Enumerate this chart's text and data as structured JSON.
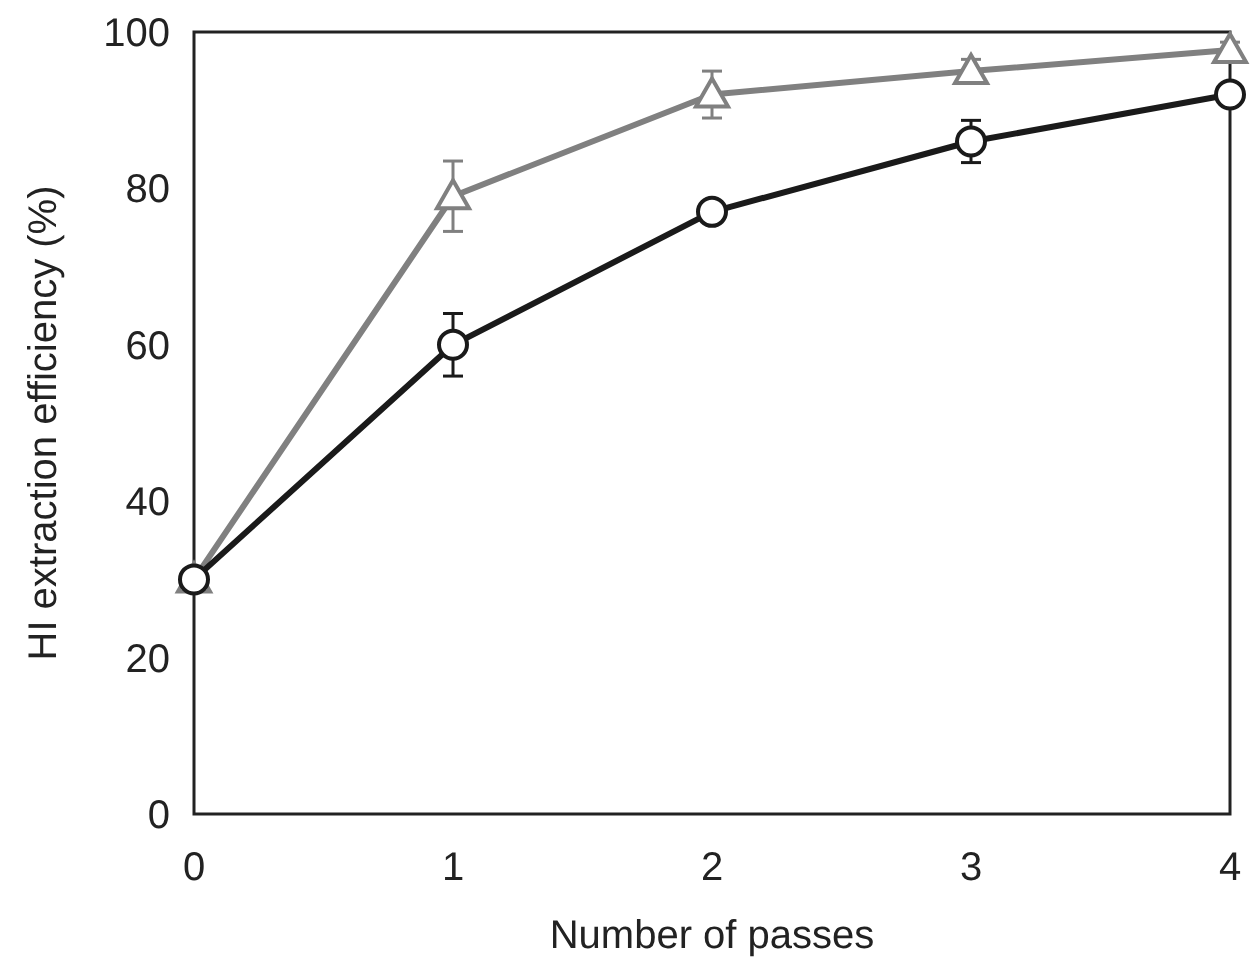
{
  "chart_data": {
    "type": "line",
    "xlabel": "Number of passes",
    "ylabel": "HI extraction efficiency (%)",
    "x": [
      0,
      1,
      2,
      3,
      4
    ],
    "xlim": [
      0,
      4
    ],
    "xticks": [
      0,
      1,
      2,
      3,
      4
    ],
    "ylim": [
      0,
      100
    ],
    "yticks": [
      0,
      20,
      40,
      60,
      80,
      100
    ],
    "grid": false,
    "series": [
      {
        "color": "#808080",
        "marker": "triangle",
        "values": [
          30,
          79,
          92,
          95,
          97.7
        ],
        "errors": [
          null,
          4.5,
          3,
          1.5,
          1
        ]
      },
      {
        "color": "#1a1a1a",
        "marker": "circle",
        "values": [
          30,
          60,
          77,
          86,
          92
        ],
        "errors": [
          null,
          4,
          null,
          2.7,
          null
        ]
      }
    ]
  }
}
